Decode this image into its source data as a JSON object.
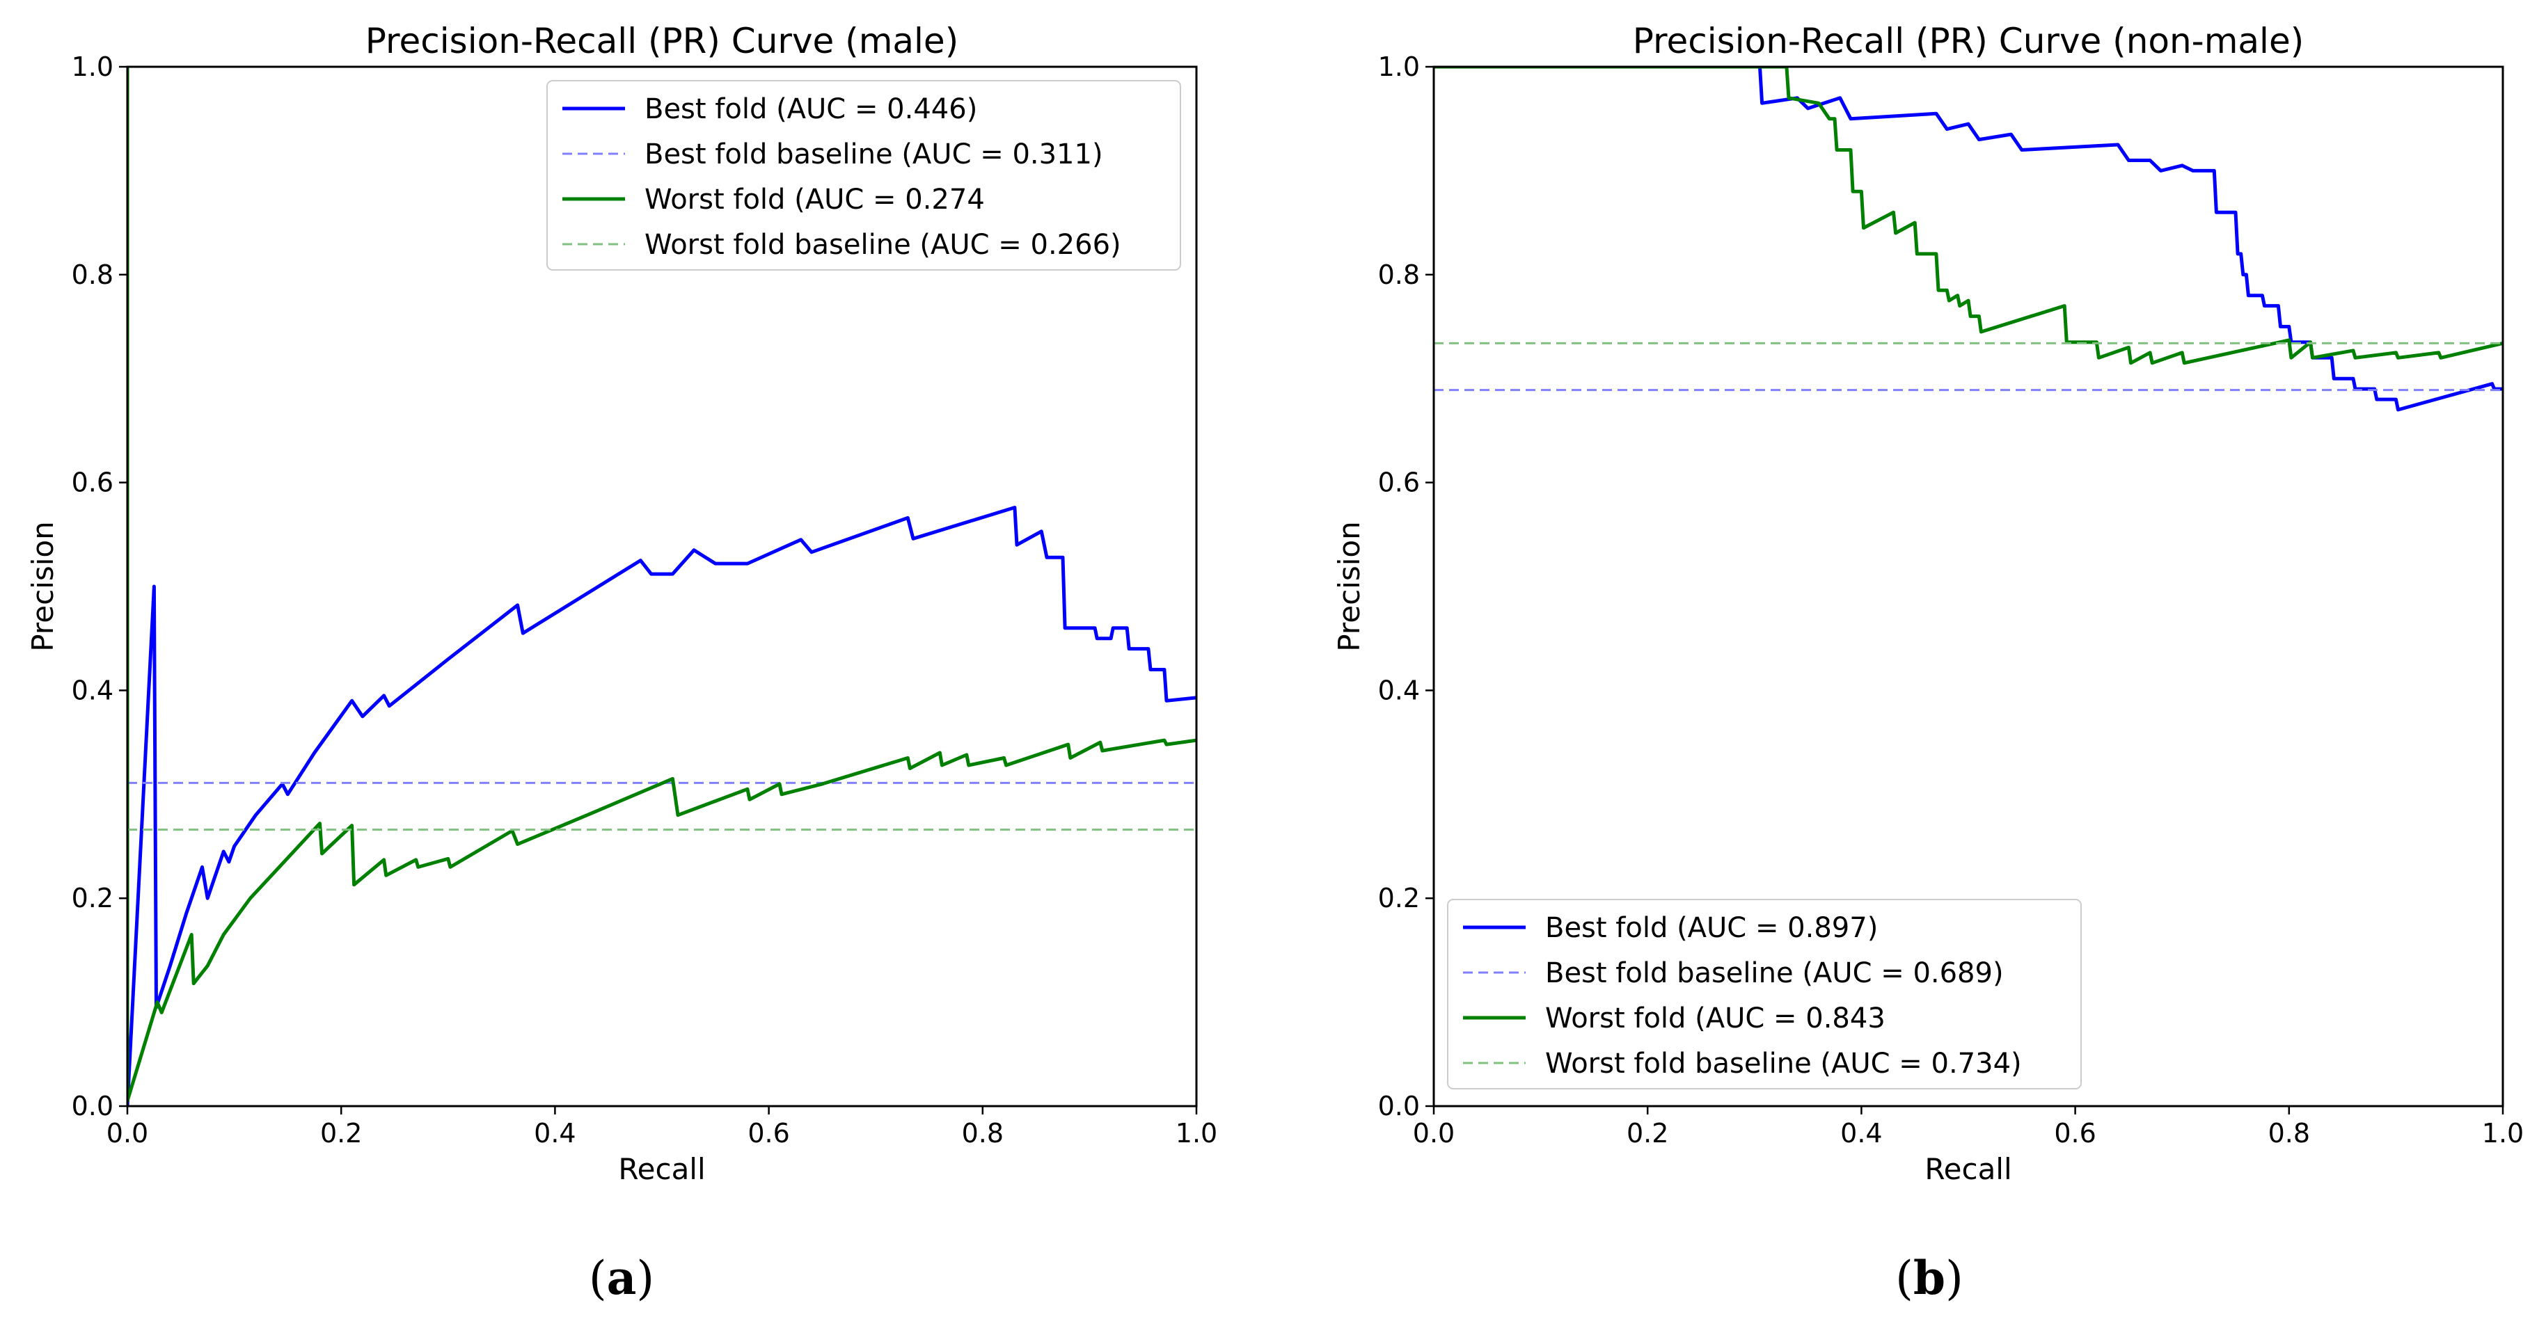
{
  "chart_data": [
    {
      "type": "line",
      "panel": "a",
      "title": "Precision-Recall (PR) Curve (male)",
      "xlabel": "Recall",
      "ylabel": "Precision",
      "xlim": [
        0,
        1
      ],
      "ylim": [
        0,
        1
      ],
      "xticks": [
        "0.0",
        "0.2",
        "0.4",
        "0.6",
        "0.8",
        "1.0"
      ],
      "yticks": [
        "0.0",
        "0.2",
        "0.4",
        "0.6",
        "0.8",
        "1.0"
      ],
      "legend_position": "top-right",
      "series": [
        {
          "name": "Best fold (AUC = 0.446)",
          "color": "#0000ff",
          "style": "solid",
          "x": [
            0.0,
            0.0,
            0.025,
            0.027,
            0.04,
            0.055,
            0.07,
            0.075,
            0.09,
            0.095,
            0.1,
            0.12,
            0.145,
            0.15,
            0.175,
            0.21,
            0.22,
            0.24,
            0.245,
            0.3,
            0.365,
            0.37,
            0.425,
            0.48,
            0.49,
            0.51,
            0.53,
            0.55,
            0.56,
            0.58,
            0.63,
            0.64,
            0.73,
            0.735,
            0.83,
            0.832,
            0.855,
            0.86,
            0.875,
            0.877,
            0.905,
            0.907,
            0.92,
            0.922,
            0.935,
            0.937,
            0.955,
            0.957,
            0.97,
            0.972,
            1.0,
            1.0
          ],
          "y": [
            1.0,
            0.0,
            0.5,
            0.095,
            0.135,
            0.185,
            0.23,
            0.2,
            0.245,
            0.235,
            0.25,
            0.28,
            0.31,
            0.3,
            0.34,
            0.39,
            0.375,
            0.395,
            0.385,
            0.43,
            0.482,
            0.455,
            0.49,
            0.525,
            0.512,
            0.512,
            0.535,
            0.522,
            0.522,
            0.522,
            0.545,
            0.533,
            0.566,
            0.546,
            0.576,
            0.54,
            0.553,
            0.528,
            0.528,
            0.46,
            0.46,
            0.45,
            0.45,
            0.46,
            0.46,
            0.44,
            0.44,
            0.42,
            0.42,
            0.39,
            0.393,
            0.393
          ]
        },
        {
          "name": "Best fold baseline (AUC = 0.311)",
          "color": "#8080ff",
          "style": "dashed",
          "x": [
            0,
            1
          ],
          "y": [
            0.311,
            0.311
          ]
        },
        {
          "name": "Worst fold (AUC = 0.274",
          "color": "#008000",
          "style": "solid",
          "x": [
            0.0,
            0.0,
            0.028,
            0.032,
            0.06,
            0.062,
            0.075,
            0.09,
            0.115,
            0.18,
            0.182,
            0.21,
            0.212,
            0.24,
            0.242,
            0.27,
            0.272,
            0.3,
            0.302,
            0.36,
            0.365,
            0.43,
            0.51,
            0.515,
            0.58,
            0.582,
            0.61,
            0.612,
            0.65,
            0.73,
            0.732,
            0.76,
            0.762,
            0.785,
            0.787,
            0.82,
            0.822,
            0.88,
            0.882,
            0.91,
            0.912,
            0.97,
            0.972,
            1.0
          ],
          "y": [
            1.0,
            0.005,
            0.1,
            0.09,
            0.165,
            0.118,
            0.135,
            0.165,
            0.2,
            0.272,
            0.243,
            0.27,
            0.213,
            0.237,
            0.222,
            0.237,
            0.23,
            0.238,
            0.23,
            0.265,
            0.252,
            0.28,
            0.315,
            0.28,
            0.305,
            0.295,
            0.31,
            0.3,
            0.31,
            0.335,
            0.325,
            0.34,
            0.328,
            0.338,
            0.328,
            0.335,
            0.328,
            0.348,
            0.335,
            0.35,
            0.342,
            0.352,
            0.348,
            0.352
          ]
        },
        {
          "name": "Worst fold baseline (AUC = 0.266)",
          "color": "#80c080",
          "style": "dashed",
          "x": [
            0,
            1
          ],
          "y": [
            0.266,
            0.266
          ]
        }
      ]
    },
    {
      "type": "line",
      "panel": "b",
      "title": "Precision-Recall (PR) Curve (non-male)",
      "xlabel": "Recall",
      "ylabel": "Precision",
      "xlim": [
        0,
        1
      ],
      "ylim": [
        0,
        1
      ],
      "xticks": [
        "0.0",
        "0.2",
        "0.4",
        "0.6",
        "0.8",
        "1.0"
      ],
      "yticks": [
        "0.0",
        "0.2",
        "0.4",
        "0.6",
        "0.8",
        "1.0"
      ],
      "legend_position": "bottom-left",
      "series": [
        {
          "name": "Best fold (AUC = 0.897)",
          "color": "#0000ff",
          "style": "solid",
          "x": [
            0.0,
            0.305,
            0.307,
            0.34,
            0.35,
            0.38,
            0.39,
            0.47,
            0.48,
            0.5,
            0.51,
            0.54,
            0.55,
            0.64,
            0.65,
            0.67,
            0.68,
            0.7,
            0.71,
            0.73,
            0.732,
            0.75,
            0.752,
            0.755,
            0.757,
            0.76,
            0.762,
            0.775,
            0.777,
            0.79,
            0.792,
            0.8,
            0.802,
            0.82,
            0.822,
            0.84,
            0.842,
            0.86,
            0.862,
            0.88,
            0.882,
            0.9,
            0.902,
            0.99,
            0.992,
            1.0
          ],
          "y": [
            1.0,
            1.0,
            0.965,
            0.97,
            0.96,
            0.97,
            0.95,
            0.955,
            0.94,
            0.945,
            0.93,
            0.935,
            0.92,
            0.925,
            0.91,
            0.91,
            0.9,
            0.905,
            0.9,
            0.9,
            0.86,
            0.86,
            0.82,
            0.82,
            0.8,
            0.8,
            0.78,
            0.78,
            0.77,
            0.77,
            0.75,
            0.75,
            0.735,
            0.735,
            0.72,
            0.72,
            0.7,
            0.7,
            0.69,
            0.69,
            0.68,
            0.68,
            0.67,
            0.695,
            0.69,
            0.69
          ]
        },
        {
          "name": "Best fold baseline (AUC = 0.689)",
          "color": "#8080ff",
          "style": "dashed",
          "x": [
            0,
            1
          ],
          "y": [
            0.689,
            0.689
          ]
        },
        {
          "name": "Worst fold (AUC = 0.843",
          "color": "#008000",
          "style": "solid",
          "x": [
            0.0,
            0.33,
            0.332,
            0.36,
            0.37,
            0.375,
            0.377,
            0.39,
            0.392,
            0.4,
            0.402,
            0.43,
            0.432,
            0.45,
            0.452,
            0.47,
            0.472,
            0.48,
            0.482,
            0.49,
            0.492,
            0.5,
            0.502,
            0.51,
            0.512,
            0.59,
            0.592,
            0.62,
            0.622,
            0.65,
            0.652,
            0.67,
            0.672,
            0.7,
            0.702,
            0.8,
            0.802,
            0.82,
            0.822,
            0.86,
            0.862,
            0.9,
            0.902,
            0.94,
            0.942,
            1.0
          ],
          "y": [
            1.0,
            1.0,
            0.97,
            0.965,
            0.95,
            0.95,
            0.92,
            0.92,
            0.88,
            0.88,
            0.845,
            0.86,
            0.84,
            0.85,
            0.82,
            0.82,
            0.785,
            0.785,
            0.775,
            0.78,
            0.77,
            0.775,
            0.76,
            0.76,
            0.745,
            0.77,
            0.735,
            0.735,
            0.72,
            0.73,
            0.715,
            0.725,
            0.715,
            0.725,
            0.715,
            0.737,
            0.72,
            0.735,
            0.72,
            0.727,
            0.72,
            0.725,
            0.72,
            0.725,
            0.72,
            0.734
          ]
        },
        {
          "name": "Worst fold baseline (AUC = 0.734)",
          "color": "#80c080",
          "style": "dashed",
          "x": [
            0,
            1
          ],
          "y": [
            0.734,
            0.734
          ]
        }
      ]
    }
  ],
  "panels": [
    {
      "label_open": "(",
      "label_letter": "a",
      "label_close": ")"
    },
    {
      "label_open": "(",
      "label_letter": "b",
      "label_close": ")"
    }
  ]
}
